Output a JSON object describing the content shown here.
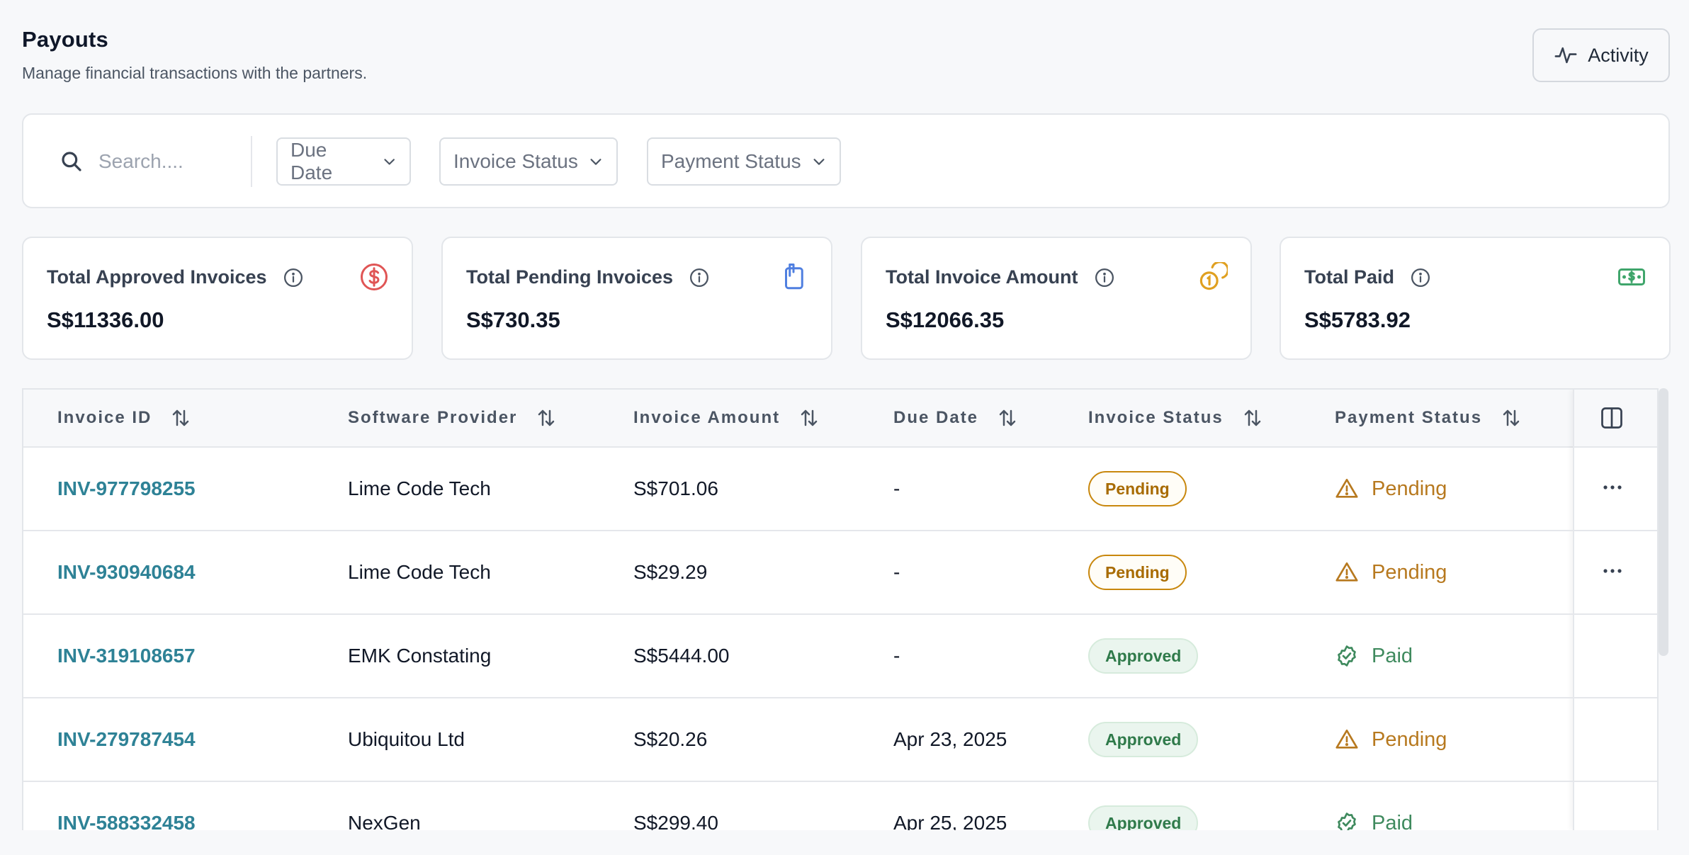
{
  "header": {
    "title": "Payouts",
    "subtitle": "Manage financial transactions with the partners.",
    "activity_label": "Activity"
  },
  "filters": {
    "search_placeholder": "Search....",
    "due_date": "Due Date",
    "invoice_status": "Invoice Status",
    "payment_status": "Payment Status"
  },
  "stats": [
    {
      "label": "Total Approved Invoices",
      "value": "S$11336.00",
      "icon": "dollar-circle-icon",
      "color": "#e05555"
    },
    {
      "label": "Total Pending Invoices",
      "value": "S$730.35",
      "icon": "clipboard-icon",
      "color": "#4f7fe0"
    },
    {
      "label": "Total Invoice Amount",
      "value": "S$12066.35",
      "icon": "coins-icon",
      "color": "#e0a020"
    },
    {
      "label": "Total Paid",
      "value": "S$5783.92",
      "icon": "banknote-icon",
      "color": "#3fa56b"
    }
  ],
  "table": {
    "columns": [
      "Invoice ID",
      "Software Provider",
      "Invoice Amount",
      "Due Date",
      "Invoice Status",
      "Payment Status"
    ],
    "rows": [
      {
        "id": "INV-977798255",
        "provider": "Lime Code Tech",
        "amount": "S$701.06",
        "due": "-",
        "invoice_status": "Pending",
        "payment_status": "Pending",
        "has_actions": true
      },
      {
        "id": "INV-930940684",
        "provider": "Lime Code Tech",
        "amount": "S$29.29",
        "due": "-",
        "invoice_status": "Pending",
        "payment_status": "Pending",
        "has_actions": true
      },
      {
        "id": "INV-319108657",
        "provider": "EMK Constating",
        "amount": "S$5444.00",
        "due": "-",
        "invoice_status": "Approved",
        "payment_status": "Paid",
        "has_actions": false
      },
      {
        "id": "INV-279787454",
        "provider": "Ubiquitou Ltd",
        "amount": "S$20.26",
        "due": "Apr 23, 2025",
        "invoice_status": "Approved",
        "payment_status": "Pending",
        "has_actions": false
      },
      {
        "id": "INV-588332458",
        "provider": "NexGen",
        "amount": "S$299.40",
        "due": "Apr 25, 2025",
        "invoice_status": "Approved",
        "payment_status": "Paid",
        "has_actions": false
      }
    ]
  },
  "colors": {
    "link": "#2e8296",
    "pending": "#b7791f",
    "paid": "#3f8a5e"
  }
}
